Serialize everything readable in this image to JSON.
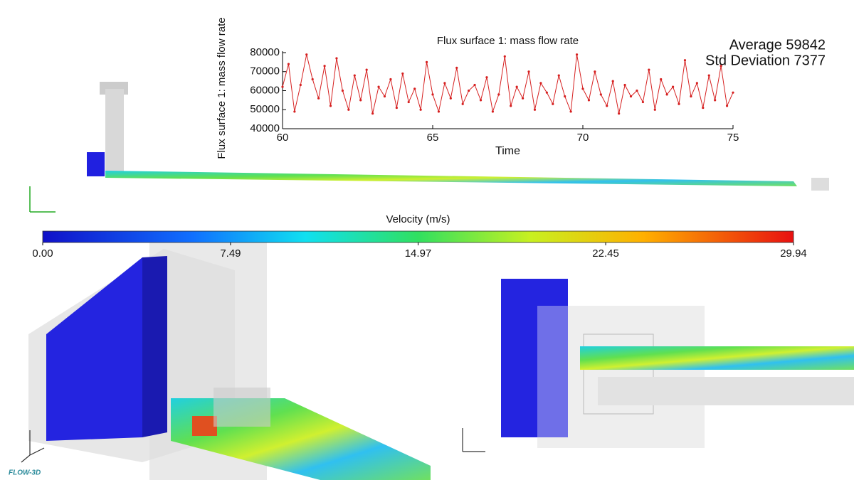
{
  "chart_data": [
    {
      "type": "line",
      "title": "Flux surface 1: mass flow rate",
      "x_label": "Time",
      "y_label": "Flux surface 1: mass flow rate",
      "annotations": [
        "Average 59842",
        "Std Deviation 7377"
      ],
      "x": [
        60,
        60.2,
        60.4,
        60.6,
        60.8,
        61,
        61.2,
        61.4,
        61.6,
        61.8,
        62,
        62.2,
        62.4,
        62.6,
        62.8,
        63,
        63.2,
        63.4,
        63.6,
        63.8,
        64,
        64.2,
        64.4,
        64.6,
        64.8,
        65,
        65.2,
        65.4,
        65.6,
        65.8,
        66,
        66.2,
        66.4,
        66.6,
        66.8,
        67,
        67.2,
        67.4,
        67.6,
        67.8,
        68,
        68.2,
        68.4,
        68.6,
        68.8,
        69,
        69.2,
        69.4,
        69.6,
        69.8,
        70,
        70.2,
        70.4,
        70.6,
        70.8,
        71,
        71.2,
        71.4,
        71.6,
        71.8,
        72,
        72.2,
        72.4,
        72.6,
        72.8,
        73,
        73.2,
        73.4,
        73.6,
        73.8,
        74,
        74.2,
        74.4,
        74.6,
        74.8,
        75
      ],
      "series": [
        {
          "color": "#d62020",
          "values": [
            62000,
            74000,
            49000,
            63000,
            79000,
            66000,
            56000,
            73000,
            52000,
            77000,
            60000,
            50000,
            68000,
            55000,
            71000,
            48000,
            62000,
            57000,
            66000,
            51000,
            69000,
            54000,
            61000,
            50000,
            75000,
            58000,
            49000,
            64000,
            56000,
            72000,
            53000,
            60000,
            63000,
            55000,
            67000,
            49000,
            58000,
            78000,
            52000,
            62000,
            56000,
            70000,
            50000,
            64000,
            59000,
            53000,
            68000,
            57000,
            49000,
            79000,
            61000,
            55000,
            70000,
            58000,
            52000,
            65000,
            48000,
            63000,
            57000,
            60000,
            54000,
            71000,
            50000,
            66000,
            58000,
            62000,
            53000,
            76000,
            57000,
            64000,
            51000,
            68000,
            55000,
            73000,
            52000,
            59000
          ]
        }
      ],
      "xlim": [
        60,
        75
      ],
      "ylim": [
        40000,
        80000
      ],
      "xticks": [
        60,
        65,
        70,
        75
      ],
      "yticks": [
        40000,
        50000,
        60000,
        70000,
        80000
      ],
      "grid": false
    },
    {
      "type": "colorbar",
      "title": "Velocity (m/s)",
      "xlim": [
        0,
        29.94
      ],
      "xticks": [
        {
          "value": 0,
          "label": "0.00"
        },
        7.49,
        14.97,
        22.45,
        29.94
      ]
    }
  ],
  "logo": "FLOW-3D"
}
